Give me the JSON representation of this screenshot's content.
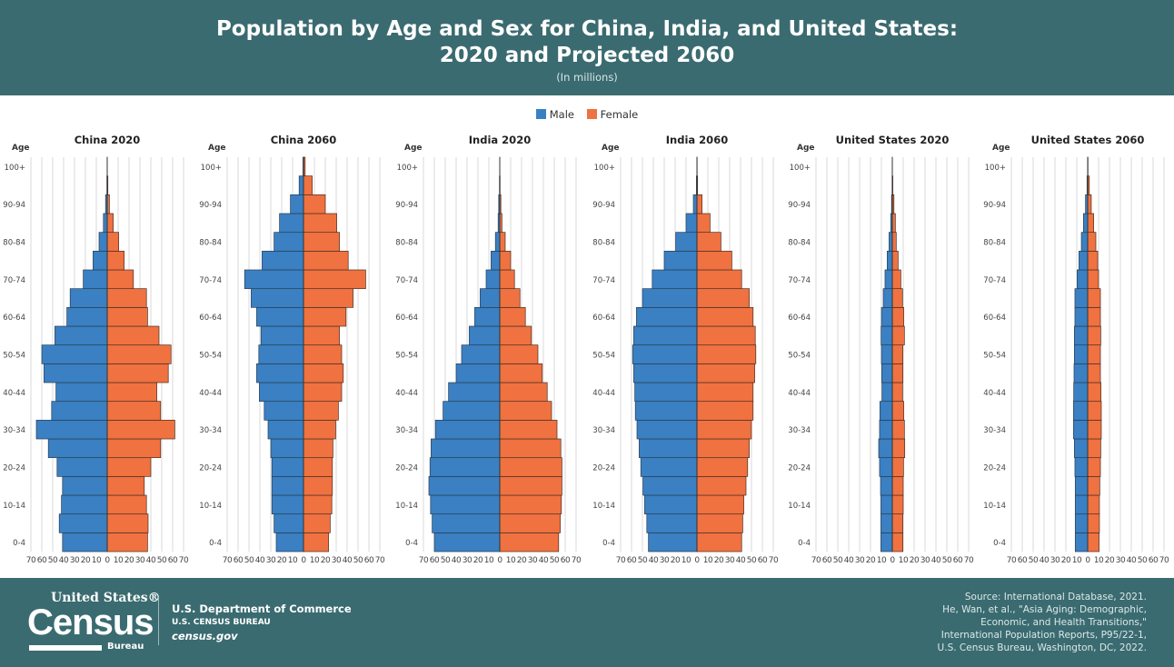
{
  "header": {
    "title_line1": "Population by Age and Sex for China, India, and United States:",
    "title_line2": "2020 and Projected 2060",
    "subtitle": "(In millions)"
  },
  "legend": [
    {
      "label": "Male",
      "color": "#3a80c3"
    },
    {
      "label": "Female",
      "color": "#ef7240"
    }
  ],
  "footer": {
    "logo_top": "United States®",
    "logo_main": "Census",
    "logo_bottom": "Bureau",
    "dept": "U.S. Department of Commerce",
    "bureau": "U.S. CENSUS BUREAU",
    "site": "census.gov",
    "source_lines": [
      "Source: International Database, 2021.",
      "He, Wan, et al., \"Asia Aging: Demographic,",
      "Economic, and Health Transitions,\"",
      "International Population Reports, P95/22-1,",
      "U.S. Census Bureau, Washington, DC, 2022."
    ]
  },
  "chart_data": {
    "type": "bar",
    "subtype": "population-pyramid",
    "units": "millions",
    "age_axis_label": "Age",
    "age_groups": [
      "0-4",
      "5-9",
      "10-14",
      "15-19",
      "20-24",
      "25-29",
      "30-34",
      "35-39",
      "40-44",
      "45-49",
      "50-54",
      "55-59",
      "60-64",
      "65-69",
      "70-74",
      "75-79",
      "80-84",
      "85-89",
      "90-94",
      "95-99",
      "100+"
    ],
    "age_tick_labels": [
      "0-4",
      "10-14",
      "20-24",
      "30-34",
      "40-44",
      "50-54",
      "60-64",
      "70-74",
      "80-84",
      "90-94",
      "100+"
    ],
    "x_ticks": [
      "70",
      "60",
      "50",
      "40",
      "30",
      "20",
      "10",
      "0",
      "10",
      "20",
      "30",
      "40",
      "50",
      "60",
      "70"
    ],
    "xlim": [
      -70,
      70
    ],
    "grid": true,
    "legend_position": "top-center",
    "panels": [
      {
        "title": "China 2020",
        "male": [
          41,
          44,
          42,
          41,
          46,
          54,
          65,
          51,
          47,
          58,
          60,
          48,
          37,
          34,
          22,
          13,
          7.5,
          3.5,
          1.5,
          0.3,
          0.05
        ],
        "female": [
          37,
          37.5,
          36,
          34,
          40,
          49,
          62,
          49,
          45.5,
          56,
          58.5,
          47.5,
          37,
          36,
          24,
          15.5,
          10.5,
          5.5,
          2,
          0.6,
          0.1
        ]
      },
      {
        "title": "China 2060",
        "male": [
          25,
          27,
          29,
          29,
          29,
          30,
          32.5,
          36,
          40.5,
          43,
          41,
          39,
          43,
          48,
          54,
          38,
          27,
          22,
          12,
          4,
          0.5
        ],
        "female": [
          23,
          24.5,
          26,
          26.5,
          26.5,
          27,
          29.5,
          32,
          35,
          36.5,
          35,
          33,
          39,
          45.5,
          57,
          41,
          33,
          30.5,
          20,
          8,
          1.5
        ]
      },
      {
        "title": "India 2020",
        "male": [
          60,
          62,
          63.5,
          65,
          64,
          63,
          59,
          52,
          47,
          40,
          35,
          28,
          23,
          18,
          12.5,
          8,
          4,
          1.5,
          1,
          0.3,
          0.05
        ],
        "female": [
          54,
          55.5,
          56.5,
          57,
          57,
          56,
          52.5,
          47.5,
          43.5,
          39,
          35,
          29,
          23.5,
          18.5,
          13.5,
          10,
          5,
          2,
          1,
          0.3,
          0.05
        ]
      },
      {
        "title": "India 2060",
        "male": [
          44.5,
          46,
          48,
          49.5,
          51.5,
          53,
          55,
          56.5,
          57,
          58,
          59,
          58,
          55.5,
          50,
          41,
          30,
          19.5,
          10,
          3.3,
          0.5,
          0.1
        ],
        "female": [
          41,
          42,
          43,
          45,
          46.5,
          48,
          50,
          51.5,
          51.5,
          53,
          54,
          53.5,
          51.5,
          48,
          41,
          32,
          22,
          12,
          4.7,
          0.6,
          0.2
        ]
      },
      {
        "title": "United States 2020",
        "male": [
          10.5,
          10.5,
          10.5,
          10.8,
          11.7,
          12.5,
          11.7,
          11.4,
          9.4,
          9.7,
          10,
          10.3,
          10,
          8.3,
          6.7,
          4.7,
          3,
          1.4,
          0.7,
          0.2,
          0.05
        ],
        "female": [
          9.7,
          9.7,
          10,
          10,
          10.3,
          11.4,
          11.1,
          10.5,
          9.4,
          9.7,
          9.7,
          11.1,
          10.5,
          9.4,
          7.8,
          5.3,
          3.6,
          2.8,
          1.5,
          0.5,
          0.1
        ]
      },
      {
        "title": "United States 2060",
        "male": [
          11.4,
          11.4,
          11.4,
          11.4,
          11.7,
          12.2,
          13,
          13,
          12.8,
          12.5,
          12.2,
          12.2,
          11.7,
          11.7,
          9.7,
          8,
          5.8,
          3.9,
          2,
          0.6,
          0.1
        ],
        "female": [
          10.5,
          10.8,
          10.8,
          11.1,
          11.7,
          12,
          12.5,
          12.5,
          12.2,
          11.7,
          11.7,
          12,
          11.7,
          11.7,
          10,
          9.2,
          7.5,
          5.5,
          3.3,
          1.5,
          0.3
        ]
      }
    ]
  }
}
